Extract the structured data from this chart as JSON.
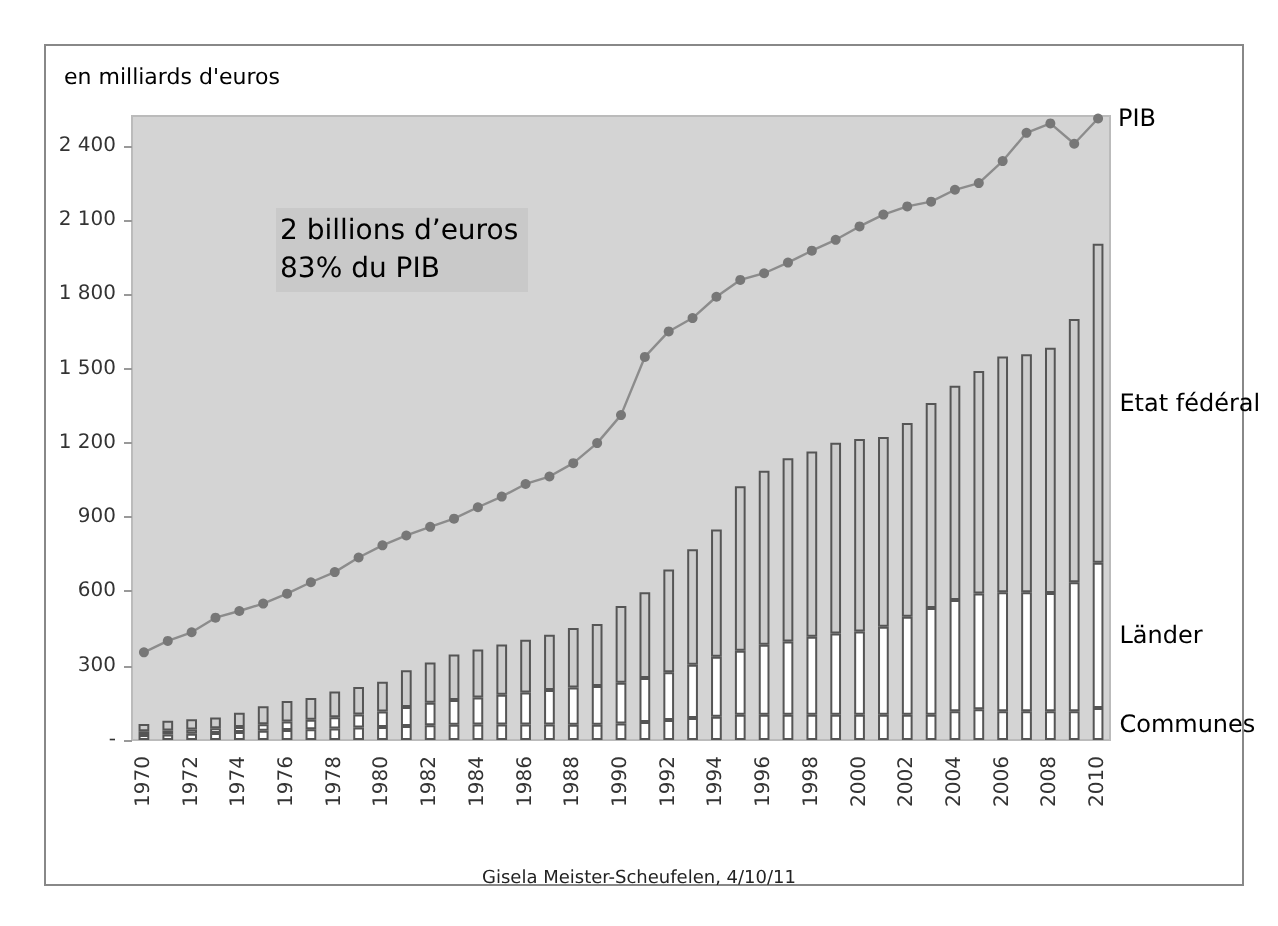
{
  "chart_data": {
    "type": "bar",
    "stacked": true,
    "ylabel": "en milliards d'euros",
    "categories": [
      "1970",
      null,
      "1972",
      null,
      "1974",
      null,
      "1976",
      null,
      "1978",
      null,
      "1980",
      null,
      "1982",
      null,
      "1984",
      null,
      "1986",
      null,
      "1988",
      null,
      "1990",
      null,
      "1992",
      null,
      "1994",
      null,
      "1996",
      null,
      "1998",
      null,
      "2000",
      null,
      "2002",
      null,
      "2004",
      null,
      "2006",
      null,
      "2008",
      null,
      "2010"
    ],
    "series": [
      {
        "name": "Communes",
        "color": "#ffffff",
        "values": [
          20,
          22,
          25,
          28,
          32,
          37,
          40,
          43,
          46,
          50,
          53,
          57,
          60,
          62,
          63,
          63,
          63,
          63,
          62,
          62,
          67,
          73,
          81,
          89,
          94,
          102,
          102,
          102,
          102,
          102,
          102,
          102,
          102,
          102,
          116,
          124,
          116,
          116,
          116,
          116,
          129
        ]
      },
      {
        "name": "Länder",
        "color": "#ffffff",
        "values": [
          15,
          16,
          17,
          19,
          21,
          27,
          35,
          39,
          46,
          53,
          62,
          76,
          90,
          100,
          109,
          120,
          129,
          139,
          150,
          156,
          164,
          177,
          193,
          215,
          242,
          258,
          283,
          296,
          315,
          328,
          336,
          355,
          396,
          431,
          449,
          468,
          481,
          481,
          478,
          521,
          587
        ]
      },
      {
        "name": "Etat fédéral",
        "color": "#cccccc",
        "values": [
          30,
          40,
          42,
          44,
          57,
          72,
          82,
          88,
          104,
          111,
          120,
          149,
          163,
          183,
          193,
          203,
          213,
          223,
          240,
          250,
          310,
          347,
          415,
          466,
          514,
          665,
          702,
          740,
          748,
          770,
          778,
          767,
          782,
          828,
          866,
          898,
          952,
          961,
          990,
          1063,
          1288
        ]
      },
      {
        "name": "PIB",
        "type": "line",
        "color": "#8c8c8c",
        "values": [
          354,
          400,
          435,
          494,
          521,
          551,
          591,
          637,
          678,
          737,
          786,
          826,
          861,
          894,
          940,
          983,
          1034,
          1064,
          1118,
          1199,
          1312,
          1547,
          1650,
          1704,
          1790,
          1858,
          1885,
          1928,
          1976,
          2020,
          2074,
          2122,
          2155,
          2174,
          2222,
          2249,
          2338,
          2452,
          2490,
          2408,
          2510
        ]
      }
    ],
    "ylim": [
      0,
      2520
    ],
    "yticks": [
      {
        "value": 0,
        "label": "-"
      },
      {
        "value": 300,
        "label": "300"
      },
      {
        "value": 600,
        "label": "600"
      },
      {
        "value": 900,
        "label": "900"
      },
      {
        "value": 1200,
        "label": "1 200"
      },
      {
        "value": 1500,
        "label": "1 500"
      },
      {
        "value": 1800,
        "label": "1 800"
      },
      {
        "value": 2100,
        "label": "2 100"
      },
      {
        "value": 2400,
        "label": "2 400"
      }
    ],
    "annotations": [
      "2 billions d’euros",
      "83% du PIB",
      "Gisela Meister-Scheufelen, 4/10/11"
    ],
    "marker": "circle",
    "grid": false,
    "legend": false
  }
}
